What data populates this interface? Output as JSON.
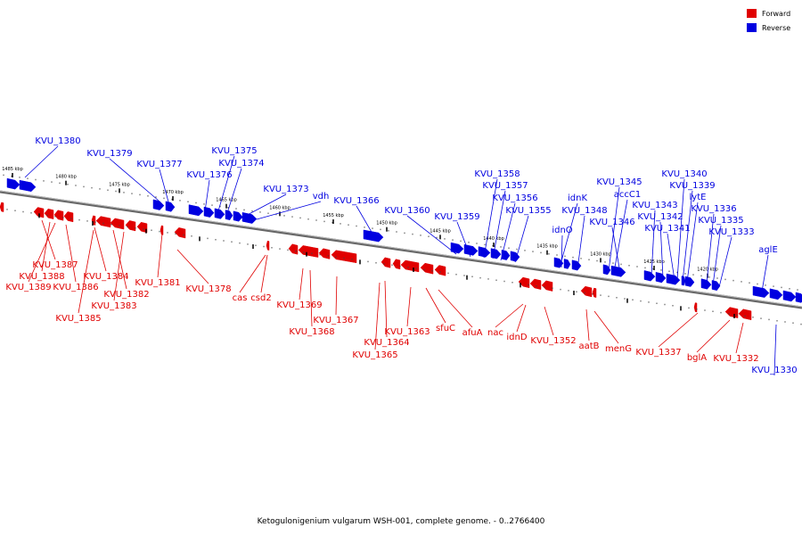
{
  "caption": "Ketogulonigenium vulgarum WSH-001, complete genome. - 0..2766400",
  "legend": [
    {
      "label": "Forward",
      "color": "#e00000"
    },
    {
      "label": "Reverse",
      "color": "#0000e0"
    }
  ],
  "colors": {
    "forward": "#e00000",
    "reverse": "#0000e0",
    "backbone": "#666666"
  },
  "ticks": [
    "1485 kbp",
    "1480 kbp",
    "1475 kbp",
    "1470 kbp",
    "1465 kbp",
    "1460 kbp",
    "1455 kbp",
    "1450 kbp",
    "1445 kbp",
    "1440 kbp",
    "1435 kbp",
    "1430 kbp",
    "1425 kbp",
    "1420 kbp"
  ],
  "reverse_labels": [
    "KVU_1380",
    "KVU_1379",
    "KVU_1377",
    "KVU_1376",
    "KVU_1375",
    "KVU_1374",
    "KVU_1373",
    "vdh",
    "KVU_1366",
    "KVU_1360",
    "KVU_1359",
    "KVU_1358",
    "KVU_1357",
    "KVU_1356",
    "KVU_1355",
    "idnK",
    "KVU_1348",
    "idnO",
    "KVU_1346",
    "KVU_1345",
    "accC1",
    "KVU_1343",
    "KVU_1342",
    "KVU_1341",
    "KVU_1340",
    "KVU_1339",
    "lytE",
    "KVU_1336",
    "KVU_1335",
    "KVU_1333",
    "aglE",
    "KVU_1330"
  ],
  "forward_labels": [
    "KVU_1387",
    "KVU_1388",
    "KVU_1389",
    "KVU_1386",
    "KVU_1384",
    "KVU_1382",
    "KVU_1383",
    "KVU_1385",
    "KVU_1381",
    "KVU_1378",
    "cas",
    "csd2",
    "KVU_1369",
    "KVU_1368",
    "KVU_1367",
    "KVU_1364",
    "KVU_1365",
    "KVU_1363",
    "sfuC",
    "afuA",
    "nac",
    "idnD",
    "KVU_1352",
    "aatB",
    "menG",
    "KVU_1337",
    "bglA",
    "KVU_1332"
  ]
}
